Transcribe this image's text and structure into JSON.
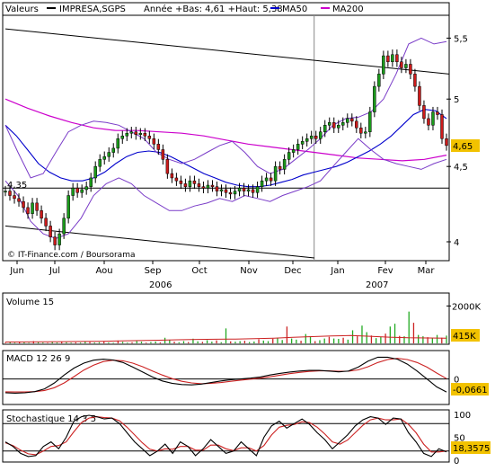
{
  "chart_data": [
    {
      "type": "candlestick",
      "title": "",
      "legend": [
        {
          "name": "Valeurs",
          "color": "#000000"
        },
        {
          "name": "IMPRESA,SGPS",
          "color": "#000000"
        },
        {
          "name": "Année +Bas: 4,61 +Haut: 5,38",
          "color": "#000000"
        },
        {
          "name": "MA50",
          "color": "#0000cc"
        },
        {
          "name": "MA200",
          "color": "#cc00cc"
        }
      ],
      "y_scale": "log",
      "ylim": [
        3.9,
        5.7
      ],
      "y_ticks": [
        {
          "v": 5.5,
          "label": "5,5"
        },
        {
          "v": 5,
          "label": "5"
        },
        {
          "v": 4.5,
          "label": "4,5"
        },
        {
          "v": 4,
          "label": "4"
        }
      ],
      "x_months": [
        "Jun",
        "Jul",
        "Aou",
        "Sep",
        "Oct",
        "Nov",
        "Dec",
        "Jan",
        "Fev",
        "Mar"
      ],
      "x_years": [
        "2006",
        "2007"
      ],
      "last_value": "4,65",
      "level_line": {
        "value": 4.35,
        "label": "4,35"
      },
      "watermark": "© IT-Finance.com / Boursorama",
      "close_series": [
        4.33,
        4.3,
        4.28,
        4.26,
        4.22,
        4.18,
        4.25,
        4.2,
        4.15,
        4.1,
        4.03,
        3.98,
        4.05,
        4.15,
        4.3,
        4.35,
        4.32,
        4.34,
        4.36,
        4.42,
        4.5,
        4.55,
        4.57,
        4.6,
        4.63,
        4.7,
        4.72,
        4.74,
        4.75,
        4.73,
        4.74,
        4.72,
        4.7,
        4.66,
        4.62,
        4.55,
        4.45,
        4.42,
        4.4,
        4.38,
        4.36,
        4.4,
        4.38,
        4.36,
        4.35,
        4.37,
        4.36,
        4.33,
        4.34,
        4.32,
        4.31,
        4.33,
        4.35,
        4.33,
        4.34,
        4.32,
        4.36,
        4.4,
        4.42,
        4.4,
        4.5,
        4.48,
        4.55,
        4.6,
        4.62,
        4.66,
        4.68,
        4.7,
        4.72,
        4.7,
        4.75,
        4.8,
        4.82,
        4.78,
        4.8,
        4.82,
        4.85,
        4.83,
        4.78,
        4.74,
        4.75,
        4.9,
        5.1,
        5.2,
        5.35,
        5.3,
        5.36,
        5.3,
        5.25,
        5.28,
        5.2,
        5.1,
        4.95,
        4.85,
        4.8,
        4.9,
        4.88,
        4.7,
        4.65
      ],
      "ma50_series": [
        4.8,
        4.72,
        4.62,
        4.52,
        4.46,
        4.42,
        4.4,
        4.4,
        4.42,
        4.46,
        4.52,
        4.57,
        4.6,
        4.61,
        4.6,
        4.57,
        4.53,
        4.49,
        4.45,
        4.42,
        4.39,
        4.37,
        4.36,
        4.36,
        4.37,
        4.39,
        4.41,
        4.44,
        4.46,
        4.48,
        4.5,
        4.53,
        4.57,
        4.61,
        4.66,
        4.72,
        4.8,
        4.88,
        4.92,
        4.91,
        4.85
      ],
      "ma200_series": [
        5,
        4.93,
        4.87,
        4.82,
        4.78,
        4.76,
        4.76,
        4.75,
        4.74,
        4.72,
        4.69,
        4.66,
        4.64,
        4.62,
        4.6,
        4.58,
        4.56,
        4.55,
        4.54,
        4.55,
        4.58
      ],
      "bollinger_upper": [
        4.8,
        4.6,
        4.42,
        4.45,
        4.6,
        4.75,
        4.8,
        4.83,
        4.82,
        4.8,
        4.75,
        4.7,
        4.6,
        4.55,
        4.52,
        4.55,
        4.6,
        4.65,
        4.68,
        4.6,
        4.5,
        4.45,
        4.48,
        4.55,
        4.62,
        4.7,
        4.8,
        4.85,
        4.86,
        4.9,
        5,
        5.2,
        5.45,
        5.5,
        5.45,
        5.47
      ],
      "bollinger_lower": [
        4.4,
        4.3,
        4.13,
        4.05,
        4.02,
        4.05,
        4.15,
        4.3,
        4.38,
        4.42,
        4.38,
        4.3,
        4.25,
        4.2,
        4.2,
        4.23,
        4.25,
        4.28,
        4.26,
        4.3,
        4.28,
        4.26,
        4.3,
        4.33,
        4.36,
        4.4,
        4.5,
        4.6,
        4.7,
        4.62,
        4.55,
        4.52,
        4.5,
        4.48,
        4.52,
        4.55
      ],
      "channel_upper": {
        "from": 5.58,
        "to": 5.2
      },
      "channel_lower": {
        "from": 4.1,
        "to": 3.9
      }
    },
    {
      "type": "bar",
      "title": "Volume 15",
      "ylim": [
        0,
        2500
      ],
      "y_ticks": [
        {
          "v": 2000,
          "label": "2000K"
        }
      ],
      "last_value": "415K",
      "values": [
        40,
        60,
        35,
        80,
        50,
        30,
        120,
        60,
        40,
        30,
        70,
        45,
        90,
        60,
        35,
        55,
        40,
        120,
        70,
        45,
        60,
        90,
        50,
        35,
        150,
        80,
        40,
        60,
        120,
        90,
        40,
        70,
        100,
        50,
        300,
        180,
        90,
        60,
        120,
        70,
        250,
        110,
        80,
        170,
        90,
        160,
        60,
        800,
        110,
        90,
        120,
        140,
        70,
        100,
        220,
        150,
        120,
        250,
        300,
        180,
        900,
        260,
        200,
        140,
        500,
        380,
        120,
        170,
        260,
        350,
        260,
        240,
        300,
        200,
        700,
        380,
        950,
        600,
        420,
        280,
        340,
        520,
        900,
        1050,
        400,
        380,
        1700,
        1100,
        450,
        380,
        330,
        290,
        450,
        300,
        415
      ],
      "ma_series": [
        70,
        75,
        80,
        90,
        100,
        110,
        130,
        150,
        170,
        190,
        210,
        220,
        230,
        250,
        280,
        320,
        360,
        400,
        420,
        380,
        330,
        300,
        290,
        280
      ]
    },
    {
      "type": "line",
      "title": "MACD 12 26 9",
      "ylim": [
        -0.12,
        0.13
      ],
      "y_ticks": [
        {
          "v": 0,
          "label": "0"
        }
      ],
      "last_value": "-0,0661",
      "macd_series": [
        -0.07,
        -0.072,
        -0.07,
        -0.064,
        -0.05,
        -0.02,
        0.02,
        0.055,
        0.08,
        0.095,
        0.1,
        0.096,
        0.083,
        0.06,
        0.035,
        0.01,
        -0.01,
        -0.022,
        -0.028,
        -0.03,
        -0.026,
        -0.018,
        -0.01,
        -0.004,
        0,
        0.004,
        0.01,
        0.02,
        0.028,
        0.035,
        0.04,
        0.043,
        0.043,
        0.04,
        0.036,
        0.04,
        0.06,
        0.09,
        0.11,
        0.11,
        0.1,
        0.075,
        0.04,
        0,
        -0.04,
        -0.066
      ],
      "signal_series": [
        -0.065,
        -0.066,
        -0.066,
        -0.064,
        -0.058,
        -0.044,
        -0.02,
        0.012,
        0.045,
        0.07,
        0.088,
        0.095,
        0.092,
        0.08,
        0.062,
        0.04,
        0.02,
        0.002,
        -0.012,
        -0.02,
        -0.024,
        -0.022,
        -0.018,
        -0.012,
        -0.006,
        -0.001,
        0.004,
        0.011,
        0.019,
        0.027,
        0.033,
        0.038,
        0.041,
        0.041,
        0.039,
        0.039,
        0.046,
        0.062,
        0.083,
        0.098,
        0.104,
        0.098,
        0.083,
        0.06,
        0.03,
        0.002
      ]
    },
    {
      "type": "line",
      "title": "Stochastique 14 3 5",
      "ylim": [
        0,
        100
      ],
      "y_ticks": [
        {
          "v": 100,
          "label": "100"
        },
        {
          "v": 50,
          "label": "50"
        },
        {
          "v": 0,
          "label": "0"
        }
      ],
      "hlines": [
        80,
        20
      ],
      "last_value": "18,3575",
      "k_series": [
        40,
        30,
        15,
        8,
        10,
        30,
        40,
        25,
        50,
        85,
        95,
        98,
        95,
        90,
        92,
        80,
        60,
        40,
        25,
        10,
        20,
        35,
        15,
        40,
        30,
        10,
        25,
        45,
        30,
        15,
        20,
        40,
        25,
        10,
        50,
        75,
        85,
        70,
        80,
        90,
        78,
        60,
        45,
        25,
        40,
        55,
        75,
        88,
        95,
        92,
        78,
        92,
        90,
        60,
        40,
        15,
        8,
        25,
        18
      ],
      "d_series": [
        38,
        32,
        22,
        14,
        12,
        20,
        30,
        32,
        40,
        62,
        82,
        92,
        95,
        93,
        92,
        86,
        72,
        55,
        38,
        24,
        20,
        25,
        24,
        30,
        30,
        22,
        22,
        33,
        33,
        25,
        21,
        27,
        27,
        20,
        32,
        55,
        72,
        76,
        78,
        84,
        82,
        72,
        57,
        40,
        35,
        44,
        60,
        76,
        88,
        92,
        88,
        88,
        90,
        78,
        60,
        35,
        18,
        18,
        20
      ]
    }
  ]
}
